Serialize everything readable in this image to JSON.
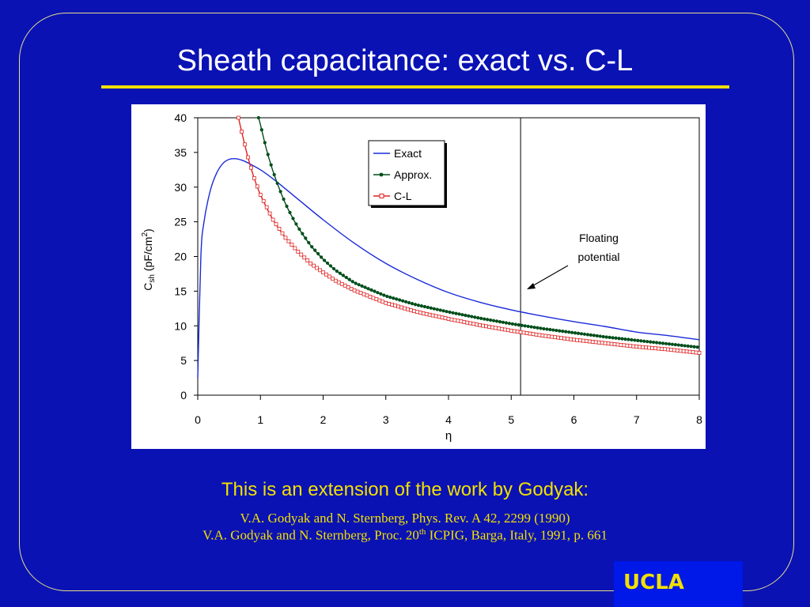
{
  "slide": {
    "title": "Sheath capacitance: exact vs. C-L",
    "reference_heading": "This is an extension of the work by Godyak:",
    "reference_1": "V.A. Godyak and N. Sternberg, Phys. Rev. A 42, 2299 (1990)",
    "reference_2_pre": "V.A. Godyak and N. Sternberg, Proc. 20",
    "reference_2_sup": "th",
    "reference_2_post": " ICPIG, Barga, Italy, 1991, p. 661",
    "logo_text": "UCLA"
  },
  "colors": {
    "background": "#0a12b4",
    "title": "#ffffff",
    "accent_yellow": "#f2e000",
    "exact": "#1a2ad8",
    "approx": "#004d1a",
    "cl": "#e02020"
  },
  "chart_data": {
    "type": "line",
    "title": "",
    "xlabel": "η",
    "ylabel_main": "C",
    "ylabel_sub": "sh",
    "ylabel_unit": " (pF/cm",
    "ylabel_sup": "2",
    "ylabel_close": ")",
    "xlim": [
      0,
      8
    ],
    "ylim": [
      0,
      40
    ],
    "xticks": [
      "0",
      "1",
      "2",
      "3",
      "4",
      "5",
      "6",
      "7",
      "8"
    ],
    "yticks": [
      "0",
      "5",
      "10",
      "15",
      "20",
      "25",
      "30",
      "35",
      "40"
    ],
    "grid": false,
    "legend_position": "top-right",
    "annotation": {
      "line1": "Floating",
      "line2": "potential",
      "x": 5.15
    },
    "series": [
      {
        "name": "Exact",
        "marker": "none",
        "x": [
          0,
          0.05,
          0.1,
          0.2,
          0.3,
          0.4,
          0.5,
          0.6,
          0.7,
          0.8,
          1.0,
          1.2,
          1.5,
          2.0,
          2.5,
          3.0,
          3.5,
          4.0,
          4.5,
          5.0,
          5.5,
          6.0,
          6.5,
          7.0,
          7.5,
          8.0
        ],
        "y": [
          2.5,
          20,
          25,
          29.5,
          32,
          33.4,
          34.0,
          34.1,
          33.9,
          33.5,
          32.5,
          31.2,
          29.0,
          25.3,
          21.9,
          19.0,
          16.7,
          14.8,
          13.4,
          12.3,
          11.4,
          10.6,
          9.9,
          9.1,
          8.6,
          8.0
        ]
      },
      {
        "name": "Approx.",
        "marker": "dot",
        "x": [
          0.97,
          1.0,
          1.1,
          1.2,
          1.3,
          1.4,
          1.5,
          1.6,
          1.8,
          2.0,
          2.2,
          2.5,
          3.0,
          3.5,
          4.0,
          4.5,
          5.0,
          5.5,
          6.0,
          6.5,
          7.0,
          7.5,
          8.0
        ],
        "y": [
          40,
          39,
          35.3,
          32.3,
          29.8,
          27.6,
          25.8,
          24.2,
          21.6,
          19.6,
          18.0,
          16.2,
          14.3,
          13.0,
          12.0,
          11.1,
          10.3,
          9.6,
          9.0,
          8.4,
          7.9,
          7.4,
          6.9
        ]
      },
      {
        "name": "C-L",
        "marker": "square",
        "x": [
          0.65,
          0.7,
          0.8,
          0.9,
          1.0,
          1.2,
          1.4,
          1.6,
          1.8,
          2.0,
          2.2,
          2.5,
          3.0,
          3.5,
          4.0,
          4.5,
          5.0,
          5.5,
          6.0,
          6.5,
          7.0,
          7.5,
          8.0
        ],
        "y": [
          40,
          38,
          34.3,
          31.3,
          28.9,
          25.3,
          22.7,
          20.7,
          19.0,
          17.7,
          16.5,
          15.1,
          13.3,
          12.0,
          11.0,
          10.1,
          9.3,
          8.6,
          8.0,
          7.5,
          7.0,
          6.6,
          6.1
        ]
      }
    ]
  }
}
